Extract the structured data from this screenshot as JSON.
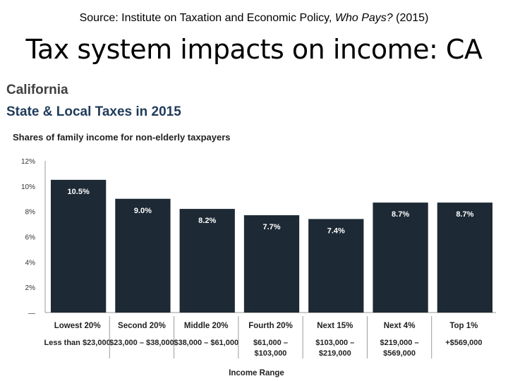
{
  "header": {
    "source_prefix": "Source: Institute on Taxation and Economic Policy, ",
    "source_italic": "Who Pays?",
    "source_suffix": " (2015)",
    "title": "Tax system impacts on income: CA"
  },
  "chart_data": {
    "type": "bar",
    "state": "California",
    "title": "State & Local Taxes in 2015",
    "subtitle": "Shares of family income for non-elderly taxpayers",
    "xlabel": "Income Range",
    "ylabel": "",
    "ylim": [
      0,
      12
    ],
    "yticks": [
      "12%",
      "10%",
      "8%",
      "6%",
      "4%",
      "2%",
      "—"
    ],
    "categories": [
      "Lowest 20%",
      "Second 20%",
      "Middle 20%",
      "Fourth 20%",
      "Next 15%",
      "Next 4%",
      "Top 1%"
    ],
    "ranges": [
      [
        "Less than $23,000"
      ],
      [
        "$23,000 – $38,000"
      ],
      [
        "$38,000 – $61,000"
      ],
      [
        "$61,000 –",
        "$103,000"
      ],
      [
        "$103,000 –",
        "$219,000"
      ],
      [
        "$219,000 –",
        "$569,000"
      ],
      [
        "+$569,000"
      ]
    ],
    "values": [
      10.5,
      9.0,
      8.2,
      7.7,
      7.4,
      8.7,
      8.7
    ],
    "value_labels": [
      "10.5%",
      "9.0%",
      "8.2%",
      "7.7%",
      "7.4%",
      "8.7%",
      "8.7%"
    ],
    "bar_color": "#1d2a35",
    "grid": false,
    "legend": "none"
  }
}
